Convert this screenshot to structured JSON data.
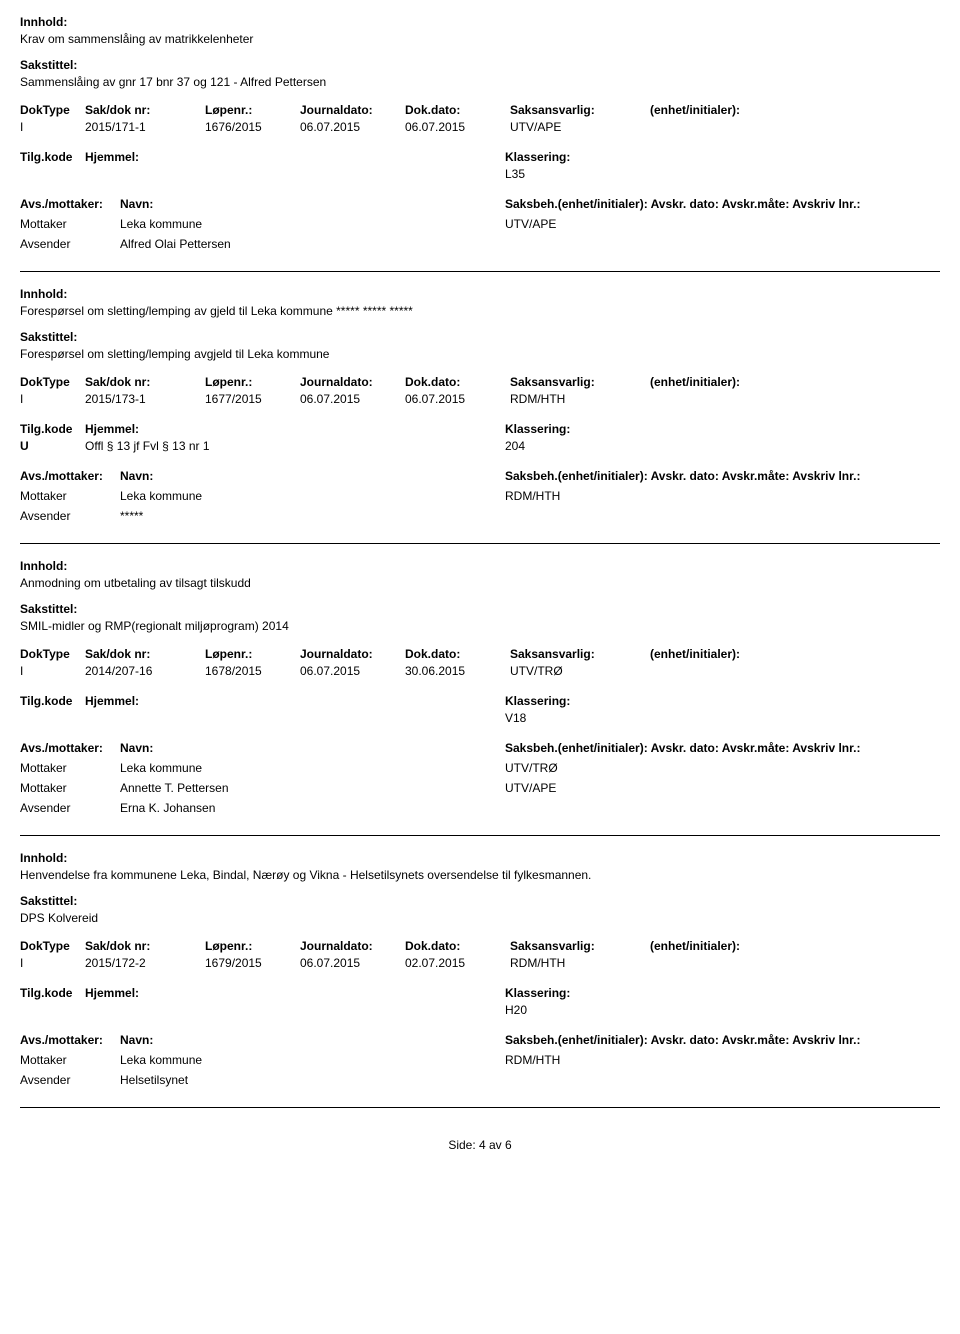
{
  "labels": {
    "innhold": "Innhold:",
    "sakstittel": "Sakstittel:",
    "doktype": "DokType",
    "sakdok": "Sak/dok nr:",
    "lopenr": "Løpenr.:",
    "journaldato": "Journaldato:",
    "dokdato": "Dok.dato:",
    "saksansvarlig": "Saksansvarlig:",
    "enhet": "(enhet/initialer):",
    "tilgkode": "Tilg.kode",
    "hjemmel": "Hjemmel:",
    "klassering": "Klassering:",
    "avsmottaker": "Avs./mottaker:",
    "navn": "Navn:",
    "saksbeh": "Saksbeh.(enhet/initialer): Avskr. dato:  Avskr.måte:  Avskriv lnr.:",
    "mottaker": "Mottaker",
    "avsender": "Avsender"
  },
  "records": [
    {
      "innhold": "Krav om sammenslåing av matrikkelenheter",
      "sakstittel": "Sammenslåing av gnr 17 bnr 37 og 121 - Alfred Pettersen",
      "doktype": "I",
      "sakdok": "2015/171-1",
      "lopenr": "1676/2015",
      "journaldato": "06.07.2015",
      "dokdato": "06.07.2015",
      "saksansvarlig": "UTV/APE",
      "tilgkode": "",
      "hjemmel": "",
      "klassering": "L35",
      "parties": [
        {
          "role": "Mottaker",
          "name": "Leka kommune",
          "code": "UTV/APE"
        },
        {
          "role": "Avsender",
          "name": "Alfred Olai Pettersen",
          "code": ""
        }
      ]
    },
    {
      "innhold": "Forespørsel om sletting/lemping av gjeld til Leka kommune ***** ***** *****",
      "sakstittel": "Forespørsel om sletting/lemping avgjeld til Leka kommune",
      "doktype": "I",
      "sakdok": "2015/173-1",
      "lopenr": "1677/2015",
      "journaldato": "06.07.2015",
      "dokdato": "06.07.2015",
      "saksansvarlig": "RDM/HTH",
      "tilgkode": "U",
      "hjemmel": "Offl § 13 jf Fvl § 13 nr 1",
      "klassering": "204",
      "parties": [
        {
          "role": "Mottaker",
          "name": "Leka kommune",
          "code": "RDM/HTH"
        },
        {
          "role": "Avsender",
          "name": "*****",
          "code": ""
        }
      ]
    },
    {
      "innhold": "Anmodning om utbetaling av tilsagt tilskudd",
      "sakstittel": "SMIL-midler og RMP(regionalt miljøprogram) 2014",
      "doktype": "I",
      "sakdok": "2014/207-16",
      "lopenr": "1678/2015",
      "journaldato": "06.07.2015",
      "dokdato": "30.06.2015",
      "saksansvarlig": "UTV/TRØ",
      "tilgkode": "",
      "hjemmel": "",
      "klassering": "V18",
      "parties": [
        {
          "role": "Mottaker",
          "name": "Leka kommune",
          "code": "UTV/TRØ"
        },
        {
          "role": "Mottaker",
          "name": "Annette T. Pettersen",
          "code": "UTV/APE"
        },
        {
          "role": "Avsender",
          "name": "Erna K. Johansen",
          "code": ""
        }
      ]
    },
    {
      "innhold": "Henvendelse fra kommunene Leka, Bindal, Nærøy og Vikna - Helsetilsynets oversendelse til fylkesmannen.",
      "sakstittel": "DPS Kolvereid",
      "doktype": "I",
      "sakdok": "2015/172-2",
      "lopenr": "1679/2015",
      "journaldato": "06.07.2015",
      "dokdato": "02.07.2015",
      "saksansvarlig": "RDM/HTH",
      "tilgkode": "",
      "hjemmel": "",
      "klassering": "H20",
      "parties": [
        {
          "role": "Mottaker",
          "name": "Leka kommune",
          "code": "RDM/HTH"
        },
        {
          "role": "Avsender",
          "name": "Helsetilsynet",
          "code": ""
        }
      ]
    }
  ],
  "footer": "Side:  4 av 6"
}
